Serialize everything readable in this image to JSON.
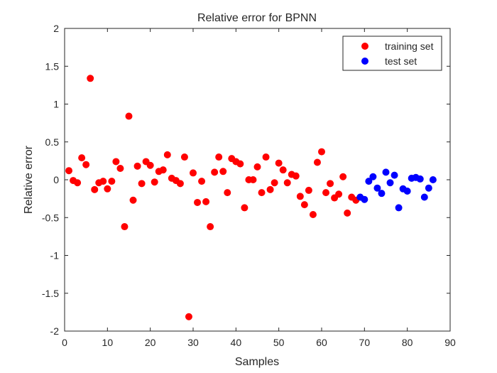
{
  "chart_data": {
    "type": "scatter",
    "title": "Relative error for BPNN",
    "xlabel": "Samples",
    "ylabel": "Relative error",
    "xlim": [
      0,
      90
    ],
    "ylim": [
      -2,
      2
    ],
    "xticks": [
      "0",
      "10",
      "20",
      "30",
      "40",
      "50",
      "60",
      "70",
      "80",
      "90"
    ],
    "yticks": [
      "2",
      "1.5",
      "1",
      "0.5",
      "0",
      "-0.5",
      "-1",
      "-1.5",
      "-2"
    ],
    "xtick_values": [
      0,
      10,
      20,
      30,
      40,
      50,
      60,
      70,
      80,
      90
    ],
    "ytick_values": [
      2,
      1.5,
      1,
      0.5,
      0,
      -0.5,
      -1,
      -1.5,
      -2
    ],
    "grid": false,
    "legend_position": "top-right",
    "series": [
      {
        "name": "training set",
        "color": "#ff0000",
        "x": [
          1,
          2,
          3,
          4,
          5,
          6,
          7,
          8,
          9,
          10,
          11,
          12,
          13,
          14,
          15,
          16,
          17,
          18,
          19,
          20,
          21,
          22,
          23,
          24,
          25,
          26,
          27,
          28,
          29,
          30,
          31,
          32,
          33,
          34,
          35,
          36,
          37,
          38,
          39,
          40,
          41,
          42,
          43,
          44,
          45,
          46,
          47,
          48,
          49,
          50,
          51,
          52,
          53,
          54,
          55,
          56,
          57,
          58,
          59,
          60,
          61,
          62,
          63,
          64,
          65,
          66,
          67,
          68
        ],
        "y": [
          0.12,
          -0.01,
          -0.04,
          0.29,
          0.2,
          1.34,
          -0.13,
          -0.04,
          -0.02,
          -0.12,
          -0.02,
          0.24,
          0.15,
          -0.62,
          0.84,
          -0.27,
          0.18,
          -0.05,
          0.24,
          0.19,
          -0.03,
          0.11,
          0.13,
          0.33,
          0.02,
          -0.01,
          -0.05,
          0.3,
          -1.81,
          0.09,
          -0.3,
          -0.02,
          -0.29,
          -0.62,
          0.1,
          0.3,
          0.11,
          -0.17,
          0.28,
          0.24,
          0.21,
          -0.37,
          0.0,
          0.0,
          0.17,
          -0.17,
          0.3,
          -0.13,
          -0.04,
          0.22,
          0.13,
          -0.04,
          0.07,
          0.05,
          -0.22,
          -0.33,
          -0.14,
          -0.46,
          0.23,
          0.37,
          -0.17,
          -0.05,
          -0.24,
          -0.19,
          0.04,
          -0.44,
          -0.23,
          -0.27
        ]
      },
      {
        "name": "test set",
        "color": "#0000ff",
        "x": [
          69,
          70,
          71,
          72,
          73,
          74,
          75,
          76,
          77,
          78,
          79,
          80,
          81,
          82,
          83,
          84,
          85,
          86
        ],
        "y": [
          -0.23,
          -0.26,
          -0.02,
          0.04,
          -0.11,
          -0.18,
          0.1,
          -0.04,
          0.06,
          -0.37,
          -0.12,
          -0.15,
          0.02,
          0.03,
          0.01,
          -0.23,
          -0.11,
          0.0
        ]
      }
    ]
  }
}
